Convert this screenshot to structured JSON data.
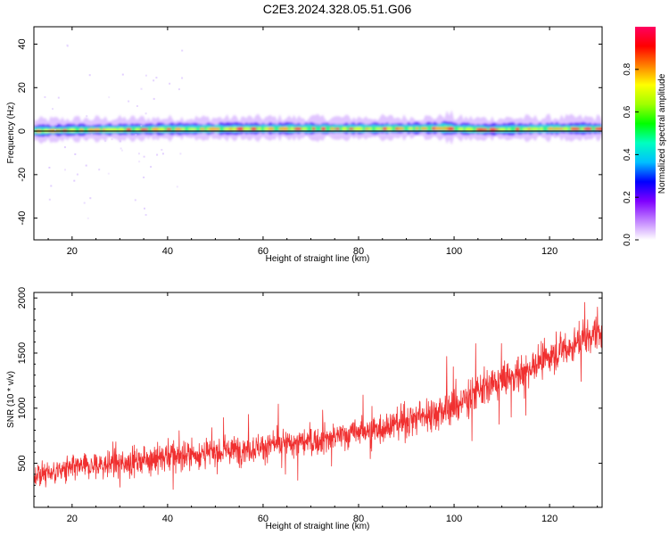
{
  "title": "C2E3.2024.328.05.51.G06",
  "chart_data": [
    {
      "type": "heatmap",
      "xlabel": "Height of straight line (km)",
      "ylabel": "Frequency (Hz)",
      "xlim": [
        12,
        131
      ],
      "ylim": [
        -50,
        48
      ],
      "xticks": [
        20,
        40,
        60,
        80,
        100,
        120
      ],
      "yticks": [
        -40,
        -20,
        0,
        20,
        40
      ],
      "reference_line_hz": 0,
      "colorbar": {
        "label": "Normalized spectral amplitude",
        "range": [
          0,
          1
        ],
        "ticks": [
          "0.0",
          "0.2",
          "0.4",
          "0.6",
          "0.8"
        ],
        "colors": [
          "#ffffff",
          "#c080ff",
          "#7f00ff",
          "#0000ff",
          "#00bfff",
          "#00ffc0",
          "#00ff00",
          "#a0ff00",
          "#ffff00",
          "#ff8000",
          "#ff0000",
          "#ff0060"
        ]
      },
      "ridge": [
        {
          "x": 13,
          "y": 0
        },
        {
          "x": 20,
          "y": 0.4
        },
        {
          "x": 40,
          "y": 0.8
        },
        {
          "x": 60,
          "y": 1.0
        },
        {
          "x": 80,
          "y": 1.0
        },
        {
          "x": 98,
          "y": 1.2
        },
        {
          "x": 100,
          "y": 1.0
        },
        {
          "x": 106,
          "y": 0.6
        },
        {
          "x": 120,
          "y": 1.0
        },
        {
          "x": 131,
          "y": 1.0
        }
      ]
    },
    {
      "type": "line",
      "xlabel": "Height of straight line (km)",
      "ylabel": "SNR (10 * v/v)",
      "xlim": [
        12,
        131
      ],
      "ylim": [
        100,
        2050
      ],
      "xticks": [
        20,
        40,
        60,
        80,
        100,
        120
      ],
      "yticks": [
        500,
        1000,
        1500,
        2000
      ],
      "color": "#f03030",
      "series": [
        {
          "trend": [
            {
              "x": 12,
              "y": 390
            },
            {
              "x": 20,
              "y": 450
            },
            {
              "x": 30,
              "y": 500
            },
            {
              "x": 40,
              "y": 560
            },
            {
              "x": 50,
              "y": 600
            },
            {
              "x": 60,
              "y": 650
            },
            {
              "x": 70,
              "y": 700
            },
            {
              "x": 80,
              "y": 780
            },
            {
              "x": 90,
              "y": 880
            },
            {
              "x": 95,
              "y": 950
            },
            {
              "x": 100,
              "y": 1020
            },
            {
              "x": 105,
              "y": 1150
            },
            {
              "x": 110,
              "y": 1250
            },
            {
              "x": 115,
              "y": 1350
            },
            {
              "x": 120,
              "y": 1470
            },
            {
              "x": 125,
              "y": 1570
            },
            {
              "x": 131,
              "y": 1720
            }
          ],
          "noise_band": [
            {
              "x": 12,
              "y": 170
            },
            {
              "x": 40,
              "y": 200
            },
            {
              "x": 80,
              "y": 190
            },
            {
              "x": 98,
              "y": 260
            },
            {
              "x": 100,
              "y": 420
            },
            {
              "x": 102,
              "y": 250
            },
            {
              "x": 131,
              "y": 240
            }
          ]
        }
      ]
    }
  ]
}
